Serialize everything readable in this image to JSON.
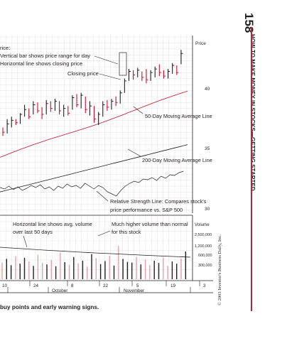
{
  "page": {
    "page_number": "158",
    "running_head": "HOW TO MAKE MONEY IN STOCKS—GETTING STARTED",
    "credit": "© 2003 Investor's Business Daily, Inc.",
    "caption": "buy points and early warning signs."
  },
  "colors": {
    "red": "#c8102e",
    "black": "#231f20",
    "grid": "#dcdcdc",
    "pink": "#e8a0ad"
  },
  "chart_data": {
    "type": "bar",
    "price_panel": {
      "axis_title": "Price",
      "ticks": [
        "40",
        "35",
        "30"
      ],
      "annotations": {
        "legend_head": "rice:",
        "legend_line1": "Vertical bar shows price range for day",
        "legend_line2": "Horizontal line shows closing price",
        "closing_price": "Closing price",
        "ma50": "50-Day Moving Average Line",
        "ma200": "200-Day Moving Average Line",
        "rs_line1": "Relative Strength Line: Compares stock's",
        "rs_line2": "price performance vs. S&P 500"
      },
      "bars": [
        {
          "hi": 36.7,
          "lo": 36.0,
          "close": 36.3,
          "dir": "down"
        },
        {
          "hi": 37.4,
          "lo": 36.2,
          "close": 37.0,
          "dir": "up"
        },
        {
          "hi": 37.6,
          "lo": 36.7,
          "close": 37.3,
          "dir": "up"
        },
        {
          "hi": 37.4,
          "lo": 36.9,
          "close": 37.1,
          "dir": "down"
        },
        {
          "hi": 37.9,
          "lo": 37.0,
          "close": 37.8,
          "dir": "up"
        },
        {
          "hi": 38.6,
          "lo": 37.6,
          "close": 38.2,
          "dir": "up"
        },
        {
          "hi": 38.3,
          "lo": 37.4,
          "close": 37.6,
          "dir": "down"
        },
        {
          "hi": 38.9,
          "lo": 37.8,
          "close": 38.6,
          "dir": "up"
        },
        {
          "hi": 38.8,
          "lo": 37.9,
          "close": 38.1,
          "dir": "down"
        },
        {
          "hi": 38.4,
          "lo": 37.4,
          "close": 37.8,
          "dir": "down"
        },
        {
          "hi": 39.0,
          "lo": 37.8,
          "close": 38.7,
          "dir": "up"
        },
        {
          "hi": 38.9,
          "lo": 38.0,
          "close": 38.3,
          "dir": "down"
        },
        {
          "hi": 39.1,
          "lo": 38.1,
          "close": 38.9,
          "dir": "up"
        },
        {
          "hi": 38.9,
          "lo": 37.8,
          "close": 38.1,
          "dir": "down"
        },
        {
          "hi": 38.6,
          "lo": 37.6,
          "close": 38.3,
          "dir": "up"
        },
        {
          "hi": 38.5,
          "lo": 37.7,
          "close": 37.9,
          "dir": "down"
        },
        {
          "hi": 39.4,
          "lo": 38.2,
          "close": 39.2,
          "dir": "up"
        },
        {
          "hi": 39.5,
          "lo": 38.4,
          "close": 38.6,
          "dir": "down"
        },
        {
          "hi": 39.6,
          "lo": 38.3,
          "close": 39.4,
          "dir": "up"
        },
        {
          "hi": 39.3,
          "lo": 37.9,
          "close": 38.2,
          "dir": "down"
        },
        {
          "hi": 38.9,
          "lo": 37.7,
          "close": 38.5,
          "dir": "up"
        },
        {
          "hi": 38.5,
          "lo": 37.1,
          "close": 37.4,
          "dir": "down"
        },
        {
          "hi": 38.0,
          "lo": 36.9,
          "close": 37.8,
          "dir": "up"
        },
        {
          "hi": 38.9,
          "lo": 37.6,
          "close": 38.6,
          "dir": "up"
        },
        {
          "hi": 39.0,
          "lo": 38.1,
          "close": 38.4,
          "dir": "down"
        },
        {
          "hi": 39.1,
          "lo": 38.2,
          "close": 38.9,
          "dir": "up"
        },
        {
          "hi": 39.3,
          "lo": 38.5,
          "close": 38.8,
          "dir": "down"
        },
        {
          "hi": 39.8,
          "lo": 38.7,
          "close": 39.6,
          "dir": "up"
        },
        {
          "hi": 40.8,
          "lo": 39.6,
          "close": 40.6,
          "dir": "up"
        },
        {
          "hi": 41.6,
          "lo": 40.6,
          "close": 41.4,
          "dir": "up"
        },
        {
          "hi": 41.5,
          "lo": 40.7,
          "close": 41.1,
          "dir": "down"
        },
        {
          "hi": 41.7,
          "lo": 40.9,
          "close": 41.5,
          "dir": "up"
        },
        {
          "hi": 41.4,
          "lo": 40.6,
          "close": 40.9,
          "dir": "down"
        },
        {
          "hi": 41.6,
          "lo": 40.4,
          "close": 40.7,
          "dir": "down"
        },
        {
          "hi": 41.5,
          "lo": 40.6,
          "close": 41.3,
          "dir": "up"
        },
        {
          "hi": 41.8,
          "lo": 40.9,
          "close": 41.6,
          "dir": "up"
        },
        {
          "hi": 42.0,
          "lo": 41.0,
          "close": 41.3,
          "dir": "down"
        },
        {
          "hi": 41.5,
          "lo": 40.8,
          "close": 41.0,
          "dir": "down"
        },
        {
          "hi": 41.6,
          "lo": 40.8,
          "close": 41.4,
          "dir": "up"
        },
        {
          "hi": 42.1,
          "lo": 41.2,
          "close": 41.9,
          "dir": "up"
        },
        {
          "hi": 41.9,
          "lo": 41.1,
          "close": 41.3,
          "dir": "down"
        },
        {
          "hi": 43.2,
          "lo": 42.0,
          "close": 42.9,
          "dir": "up"
        }
      ]
    },
    "volume_panel": {
      "axis_title": "Volume",
      "ticks": [
        "2,500,000",
        "1,200,000",
        "600,000",
        "300,000"
      ],
      "annotations": {
        "avg_line1": "Horizontal line shows avg. volume",
        "avg_line2": "over last 50 days",
        "high_line1": "Much higher volume than normal",
        "high_line2": "for this stock"
      },
      "volumes": [
        0.45,
        0.55,
        0.38,
        0.62,
        0.42,
        0.58,
        0.48,
        0.36,
        0.66,
        0.44,
        0.4,
        0.52,
        0.35,
        0.72,
        0.46,
        0.39,
        0.6,
        0.43,
        0.5,
        0.34,
        0.68,
        0.57,
        0.41,
        0.49,
        0.63,
        0.37,
        0.9,
        0.55,
        0.47,
        0.45,
        0.61,
        0.4,
        0.53,
        0.38,
        0.5,
        0.44,
        0.59,
        0.36,
        0.48,
        0.42,
        0.56,
        0.75
      ]
    },
    "dates": {
      "days": [
        "10",
        "24",
        "8",
        "22",
        "5",
        "19",
        "3"
      ],
      "months": [
        "October",
        "November"
      ]
    }
  }
}
